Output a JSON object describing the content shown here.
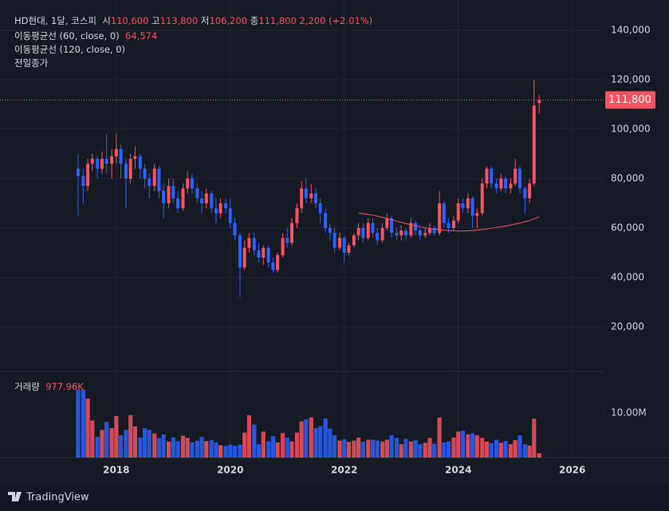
{
  "chart_data": {
    "type": "candlestick",
    "title": "HD현대, 1달, 코스피",
    "legend": {
      "open_label": "시",
      "open": "110,600",
      "high_label": "고",
      "high": "113,800",
      "low_label": "저",
      "low": "106,200",
      "close_label": "종",
      "close": "111,800",
      "change": "2,200 (+2.01%)"
    },
    "prev_close_label": "전일종가",
    "up_color": "#f7525f",
    "down_color": "#2962ff",
    "grid": true,
    "x": [
      2017.33,
      2017.42,
      2017.5,
      2017.58,
      2017.67,
      2017.75,
      2017.83,
      2017.92,
      2018,
      2018.08,
      2018.17,
      2018.25,
      2018.33,
      2018.42,
      2018.5,
      2018.58,
      2018.67,
      2018.75,
      2018.83,
      2018.92,
      2019,
      2019.08,
      2019.17,
      2019.25,
      2019.33,
      2019.42,
      2019.5,
      2019.58,
      2019.67,
      2019.75,
      2019.83,
      2019.92,
      2020,
      2020.08,
      2020.17,
      2020.25,
      2020.33,
      2020.42,
      2020.5,
      2020.58,
      2020.67,
      2020.75,
      2020.83,
      2020.92,
      2021,
      2021.08,
      2021.17,
      2021.25,
      2021.33,
      2021.42,
      2021.5,
      2021.58,
      2021.67,
      2021.75,
      2021.83,
      2021.92,
      2022,
      2022.08,
      2022.17,
      2022.25,
      2022.33,
      2022.42,
      2022.5,
      2022.58,
      2022.67,
      2022.75,
      2022.83,
      2022.92,
      2023,
      2023.08,
      2023.17,
      2023.25,
      2023.33,
      2023.42,
      2023.5,
      2023.58,
      2023.67,
      2023.75,
      2023.83,
      2023.92,
      2024,
      2024.08,
      2024.17,
      2024.25,
      2024.33,
      2024.42,
      2024.5,
      2024.58,
      2024.67,
      2024.75,
      2024.83,
      2024.92,
      2025,
      2025.08,
      2025.17,
      2025.25,
      2025.33,
      2025.42
    ],
    "ohlc": [
      [
        84000,
        90000,
        65000,
        81000
      ],
      [
        81000,
        84000,
        70000,
        77000
      ],
      [
        77000,
        88000,
        75000,
        86000
      ],
      [
        86000,
        90000,
        83000,
        88000
      ],
      [
        88000,
        89000,
        80000,
        84000
      ],
      [
        84000,
        91000,
        82000,
        88000
      ],
      [
        88000,
        98000,
        82000,
        86000
      ],
      [
        86000,
        92000,
        80000,
        89000
      ],
      [
        89000,
        98000,
        86000,
        92000
      ],
      [
        92000,
        94000,
        80000,
        86000
      ],
      [
        86000,
        88000,
        68000,
        80000
      ],
      [
        80000,
        90000,
        78000,
        88000
      ],
      [
        88000,
        93000,
        84000,
        89000
      ],
      [
        89000,
        90000,
        80000,
        84000
      ],
      [
        84000,
        86000,
        76000,
        80000
      ],
      [
        80000,
        82000,
        72000,
        77000
      ],
      [
        77000,
        86000,
        75000,
        84000
      ],
      [
        84000,
        85000,
        72000,
        75000
      ],
      [
        75000,
        78000,
        64000,
        70000
      ],
      [
        70000,
        80000,
        68000,
        77000
      ],
      [
        77000,
        80000,
        70000,
        72000
      ],
      [
        72000,
        75000,
        66000,
        68000
      ],
      [
        68000,
        78000,
        67000,
        76000
      ],
      [
        76000,
        83000,
        74000,
        80000
      ],
      [
        80000,
        82000,
        74000,
        76000
      ],
      [
        76000,
        78000,
        70000,
        72000
      ],
      [
        72000,
        75000,
        66000,
        70000
      ],
      [
        70000,
        76000,
        68000,
        74000
      ],
      [
        74000,
        75000,
        66000,
        68000
      ],
      [
        68000,
        72000,
        62000,
        66000
      ],
      [
        66000,
        72000,
        64000,
        70000
      ],
      [
        70000,
        72000,
        66000,
        68000
      ],
      [
        68000,
        72000,
        60000,
        62000
      ],
      [
        62000,
        64000,
        55000,
        57000
      ],
      [
        57000,
        58000,
        32000,
        44000
      ],
      [
        44000,
        55000,
        43000,
        52000
      ],
      [
        52000,
        58000,
        50000,
        56000
      ],
      [
        56000,
        58000,
        49000,
        51000
      ],
      [
        51000,
        54000,
        46000,
        48000
      ],
      [
        48000,
        53000,
        45000,
        52000
      ],
      [
        52000,
        53000,
        44000,
        46000
      ],
      [
        46000,
        48000,
        42000,
        43000
      ],
      [
        43000,
        50000,
        42000,
        49000
      ],
      [
        49000,
        58000,
        48000,
        56000
      ],
      [
        56000,
        60000,
        52000,
        54000
      ],
      [
        54000,
        64000,
        53000,
        62000
      ],
      [
        62000,
        70000,
        60000,
        68000
      ],
      [
        68000,
        79000,
        66000,
        76000
      ],
      [
        76000,
        80000,
        70000,
        72000
      ],
      [
        72000,
        78000,
        70000,
        74000
      ],
      [
        74000,
        76000,
        68000,
        70000
      ],
      [
        70000,
        72000,
        62000,
        66000
      ],
      [
        66000,
        68000,
        58000,
        60000
      ],
      [
        60000,
        62000,
        55000,
        58000
      ],
      [
        58000,
        60000,
        50000,
        52000
      ],
      [
        52000,
        58000,
        51000,
        56000
      ],
      [
        56000,
        57000,
        46000,
        50000
      ],
      [
        50000,
        54000,
        49000,
        53000
      ],
      [
        53000,
        58000,
        52000,
        57000
      ],
      [
        57000,
        62000,
        55000,
        60000
      ],
      [
        60000,
        62000,
        54000,
        56000
      ],
      [
        56000,
        64000,
        55000,
        62000
      ],
      [
        62000,
        64000,
        56000,
        58000
      ],
      [
        58000,
        60000,
        53000,
        55000
      ],
      [
        55000,
        62000,
        54000,
        60000
      ],
      [
        60000,
        66000,
        59000,
        64000
      ],
      [
        64000,
        65000,
        56000,
        58000
      ],
      [
        58000,
        60000,
        55000,
        57000
      ],
      [
        57000,
        61000,
        55000,
        59000
      ],
      [
        59000,
        60000,
        55000,
        57000
      ],
      [
        57000,
        64000,
        56000,
        62000
      ],
      [
        62000,
        63000,
        57000,
        59000
      ],
      [
        59000,
        60000,
        55000,
        57000
      ],
      [
        57000,
        60000,
        56000,
        58000
      ],
      [
        58000,
        62000,
        57000,
        60000
      ],
      [
        60000,
        61000,
        57000,
        58000
      ],
      [
        58000,
        75000,
        57000,
        70000
      ],
      [
        70000,
        71000,
        60000,
        62000
      ],
      [
        62000,
        64000,
        58000,
        60000
      ],
      [
        60000,
        65000,
        59000,
        63000
      ],
      [
        63000,
        72000,
        62000,
        70000
      ],
      [
        70000,
        72000,
        66000,
        68000
      ],
      [
        68000,
        74000,
        66000,
        72000
      ],
      [
        72000,
        73000,
        60000,
        65000
      ],
      [
        65000,
        68000,
        60000,
        66000
      ],
      [
        66000,
        80000,
        65000,
        78000
      ],
      [
        78000,
        85000,
        76000,
        84000
      ],
      [
        84000,
        85000,
        76000,
        78000
      ],
      [
        78000,
        80000,
        74000,
        76000
      ],
      [
        76000,
        82000,
        75000,
        80000
      ],
      [
        80000,
        81000,
        74000,
        76000
      ],
      [
        76000,
        80000,
        74000,
        78000
      ],
      [
        78000,
        88000,
        77000,
        84000
      ],
      [
        84000,
        85000,
        74000,
        76000
      ],
      [
        76000,
        77000,
        66000,
        72000
      ],
      [
        72000,
        80000,
        70000,
        78000
      ],
      [
        78000,
        120000,
        77000,
        109600
      ],
      [
        110600,
        113800,
        106200,
        111800
      ]
    ],
    "xlim": [
      2015.96,
      2026.55
    ],
    "xticks": [
      2018,
      2020,
      2022,
      2024,
      2026
    ],
    "ylim": [
      1935,
      152258
    ],
    "yticks": [
      {
        "value": 20000,
        "label": "20,000"
      },
      {
        "value": 40000,
        "label": "40,000"
      },
      {
        "value": 60000,
        "label": "60,000"
      },
      {
        "value": 80000,
        "label": "80,000"
      },
      {
        "value": 100000,
        "label": "100,000"
      },
      {
        "value": 120000,
        "label": "120,000"
      },
      {
        "value": 140000,
        "label": "140,000"
      }
    ],
    "last_price_label": "111,800",
    "indicators": [
      {
        "name": "이동평균선 (60, close, 0)",
        "value_label": "64,574",
        "color": "#f7525f",
        "values": [
          null,
          null,
          null,
          null,
          null,
          null,
          null,
          null,
          null,
          null,
          null,
          null,
          null,
          null,
          null,
          null,
          null,
          null,
          null,
          null,
          null,
          null,
          null,
          null,
          null,
          null,
          null,
          null,
          null,
          null,
          null,
          null,
          null,
          null,
          null,
          null,
          null,
          null,
          null,
          null,
          null,
          null,
          null,
          null,
          null,
          null,
          null,
          null,
          null,
          null,
          null,
          null,
          null,
          null,
          null,
          null,
          null,
          null,
          null,
          66000,
          65800,
          65500,
          65200,
          64800,
          64300,
          63800,
          63300,
          62800,
          62300,
          61800,
          61300,
          60900,
          60500,
          60100,
          59800,
          59500,
          59300,
          59100,
          59000,
          58900,
          58800,
          58800,
          58900,
          59000,
          59200,
          59400,
          59600,
          59900,
          60200,
          60500,
          60800,
          61200,
          61600,
          62000,
          62500,
          63000,
          63700,
          64574
        ]
      },
      {
        "name": "이동평균선 (120, close, 0)"
      }
    ],
    "volume": {
      "name": "거래량",
      "value_label": "977.96K",
      "ylim": [
        0,
        19290000
      ],
      "yticks": [
        {
          "value": 10000000,
          "label": "10.00M"
        }
      ],
      "values": [
        15200000,
        15200000,
        13200000,
        8300000,
        4600000,
        6200000,
        8000000,
        6600000,
        9300000,
        5000000,
        6200000,
        9500000,
        7000000,
        4500000,
        6600000,
        6200000,
        5400000,
        4400000,
        5200000,
        3600000,
        4500000,
        3700000,
        4900000,
        4400000,
        3400000,
        3800000,
        4600000,
        3700000,
        3900000,
        3400000,
        2800000,
        2600000,
        2900000,
        2600000,
        2900000,
        5600000,
        9500000,
        7400000,
        3000000,
        5800000,
        3700000,
        4800000,
        3400000,
        5500000,
        4500000,
        3600000,
        5600000,
        8100000,
        8600000,
        9000000,
        6600000,
        7000000,
        8800000,
        6500000,
        5000000,
        3800000,
        4100000,
        3500000,
        3800000,
        4500000,
        3600000,
        4000000,
        4000000,
        3800000,
        3600000,
        4000000,
        5000000,
        4400000,
        3000000,
        4200000,
        3600000,
        3900000,
        3000000,
        3300000,
        4400000,
        3100000,
        9000000,
        3400000,
        3600000,
        4500000,
        5800000,
        6000000,
        5200000,
        5400000,
        5000000,
        4400000,
        3600000,
        3200000,
        4000000,
        3300000,
        3700000,
        3000000,
        3900000,
        5000000,
        3000000,
        2700000,
        8700000,
        977960
      ]
    },
    "branding": "TradingView"
  }
}
